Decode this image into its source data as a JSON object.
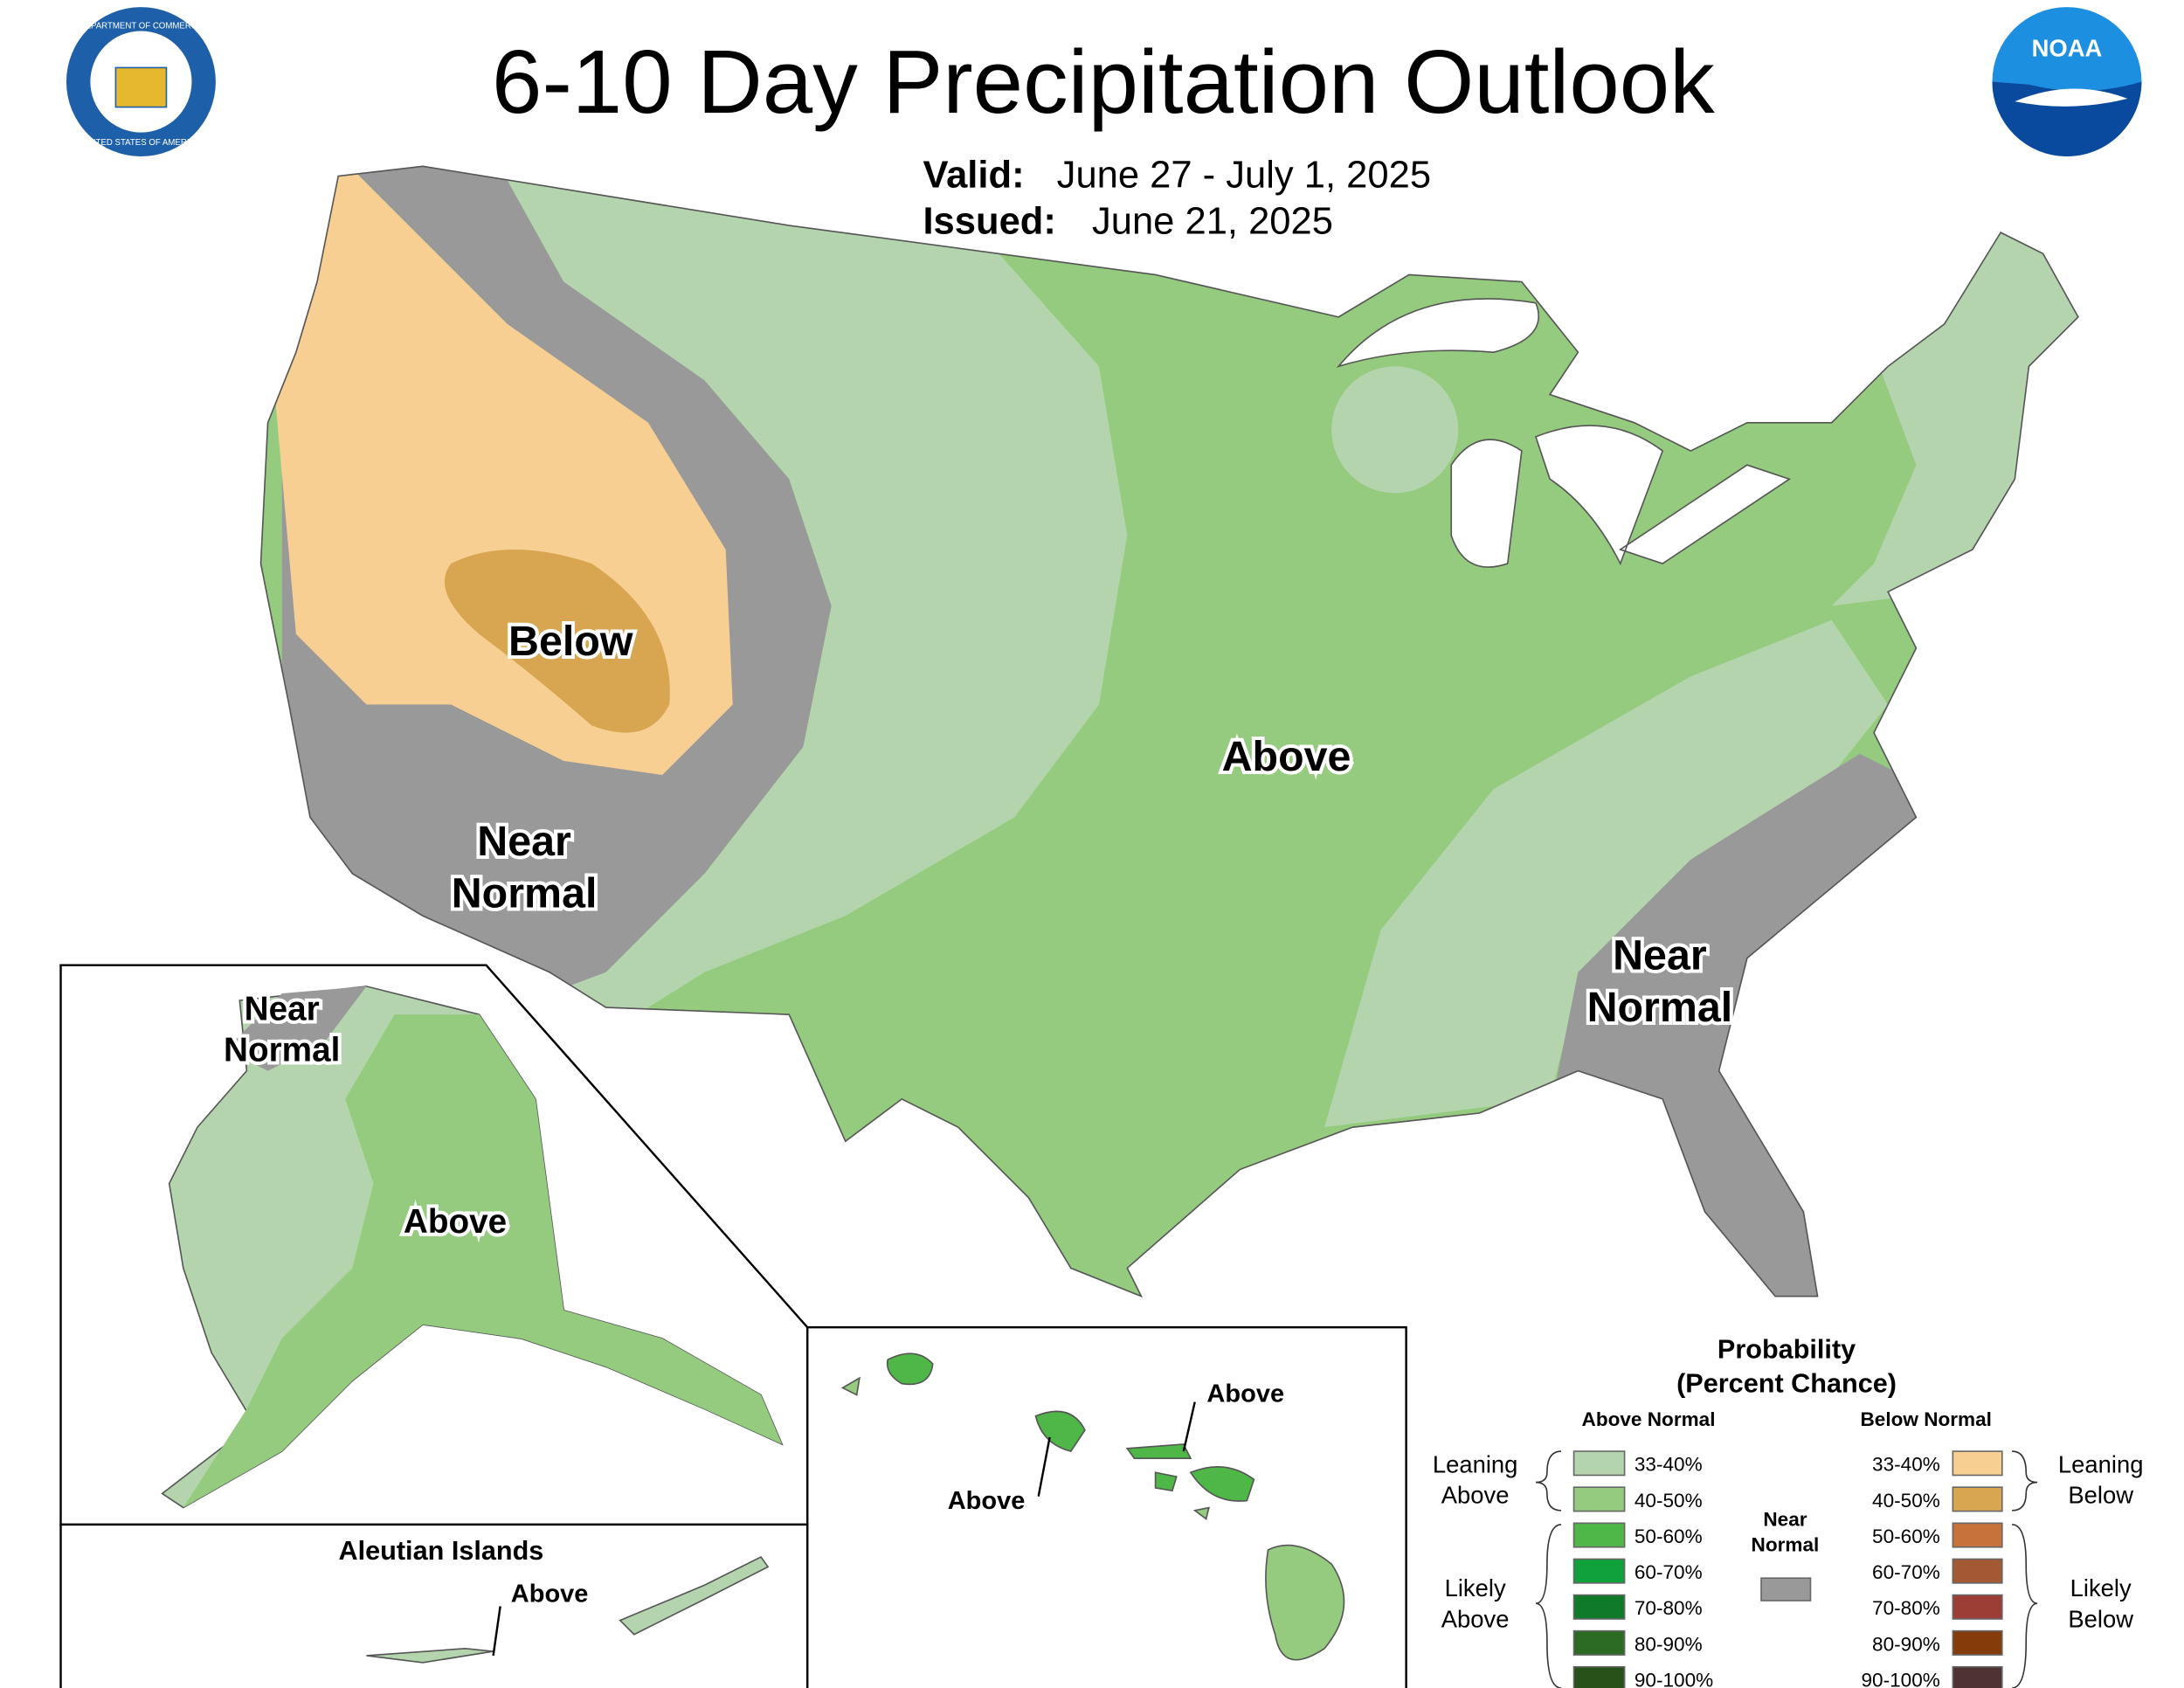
{
  "header": {
    "title": "6-10 Day Precipitation Outlook",
    "valid_label": "Valid:",
    "valid": "June 27 - July 1, 2025",
    "issued_label": "Issued:",
    "issued": "June 21, 2025"
  },
  "logos": {
    "commerce_top": "DEPARTMENT OF COMMERCE",
    "commerce_bottom": "UNITED STATES OF AMERICA",
    "noaa": "NOAA"
  },
  "conus_labels": [
    "Below",
    "Above",
    "Near",
    "Normal",
    "Near",
    "Normal"
  ],
  "alaska": {
    "labels": [
      "Near",
      "Normal",
      "Above"
    ]
  },
  "aleutians": {
    "title": "Aleutian Islands",
    "labels": [
      "Above"
    ]
  },
  "hawaii": {
    "labels": [
      "Above",
      "Above"
    ]
  },
  "legend": {
    "title": [
      "Probability",
      "(Percent Chance)"
    ],
    "above_header": "Above Normal",
    "below_header": "Below Normal",
    "above": [
      {
        "label": "33-40%",
        "color": "#b3d4ac"
      },
      {
        "label": "40-50%",
        "color": "#94cb7e"
      },
      {
        "label": "50-60%",
        "color": "#4fb648"
      },
      {
        "label": "60-70%",
        "color": "#10a03c"
      },
      {
        "label": "70-80%",
        "color": "#0f7a2a"
      },
      {
        "label": "80-90%",
        "color": "#2c6b23"
      },
      {
        "label": "90-100%",
        "color": "#285019"
      }
    ],
    "below": [
      {
        "label": "33-40%",
        "color": "#f7cf93"
      },
      {
        "label": "40-50%",
        "color": "#d8a651"
      },
      {
        "label": "50-60%",
        "color": "#c8723b"
      },
      {
        "label": "60-70%",
        "color": "#a35a33"
      },
      {
        "label": "70-80%",
        "color": "#9c3d36"
      },
      {
        "label": "80-90%",
        "color": "#843c0b"
      },
      {
        "label": "90-100%",
        "color": "#4f3333"
      }
    ],
    "near": {
      "label": [
        "Near",
        "Normal"
      ],
      "color": "#999999"
    },
    "groups": {
      "leaning_above": [
        "Leaning",
        "Above"
      ],
      "likely_above": [
        "Likely",
        "Above"
      ],
      "leaning_below": [
        "Leaning",
        "Below"
      ],
      "likely_below": [
        "Likely",
        "Below"
      ]
    }
  }
}
